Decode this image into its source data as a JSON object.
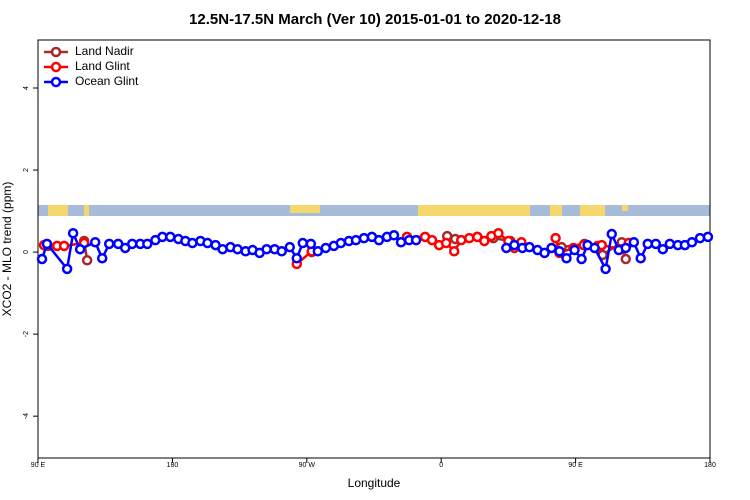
{
  "chart_data": {
    "type": "line",
    "title": "12.5N-17.5N March (Ver 10)   2015-01-01 to 2020-12-18",
    "x_label": "Longitude",
    "y_label": "XCO2 - MLO trend (ppm)",
    "xlim": [
      90,
      540
    ],
    "ylim": [
      -5.02,
      5.17
    ],
    "xticks": [
      {
        "value": 90,
        "label": "90 E"
      },
      180,
      {
        "value": 270,
        "label": "90 W"
      },
      {
        "value": 360,
        "label": "0"
      },
      {
        "value": 450,
        "label": "90 E"
      },
      {
        "value": 540,
        "label": "180"
      }
    ],
    "yticks": [
      -4,
      -2,
      0,
      2,
      4
    ],
    "legend": "topleft",
    "series": [
      {
        "name": "Land Nadir",
        "color": "#a52a2a",
        "x": [
          96.7,
          null,
          120.9,
          122.9,
          null,
          273.3,
          null,
          364.0,
          369.4,
          384.2,
          394.9,
          406.3,
          null,
          440.6,
          456.0,
          468.1,
          480.9,
          483.6
        ],
        "values": [
          0.15,
          null,
          0.27,
          -0.2,
          null,
          0.0,
          null,
          0.39,
          0.32,
          0.37,
          0.34,
          0.27,
          null,
          0.12,
          0.2,
          -0.07,
          0.24,
          -0.17
        ]
      },
      {
        "name": "Land Glint",
        "color": "#ff0000",
        "x": [
          94.0,
          102.8,
          107.5,
          120.9,
          null,
          263.3,
          273.3,
          null,
          337.1,
          349.2,
          353.9,
          358.6,
          363.3,
          368.7,
          373.4,
          378.8,
          384.2,
          388.9,
          393.6,
          398.3,
          405.0,
          409.0,
          413.7,
          null,
          436.6,
          439.2,
          448.6,
          455.4,
          464.8,
          467.5,
          480.9,
          485.6
        ],
        "values": [
          0.17,
          0.15,
          0.15,
          0.22,
          null,
          -0.29,
          0.02,
          null,
          0.37,
          0.37,
          0.29,
          0.17,
          0.22,
          0.02,
          0.29,
          0.34,
          0.37,
          0.27,
          0.39,
          0.46,
          0.27,
          0.1,
          0.24,
          null,
          0.34,
          -0.02,
          0.1,
          0.17,
          0.15,
          0.17,
          0.07,
          0.22
        ]
      },
      {
        "name": "Ocean Glint",
        "color": "#0000ff",
        "x": [
          92.7,
          96.0,
          109.5,
          113.5,
          118.2,
          128.3,
          133.0,
          137.7,
          143.7,
          148.4,
          153.1,
          158.5,
          163.2,
          168.6,
          173.3,
          178.6,
          184.0,
          188.7,
          193.4,
          198.8,
          203.5,
          208.9,
          213.6,
          218.9,
          223.6,
          229.0,
          233.7,
          238.4,
          243.1,
          248.5,
          253.2,
          258.6,
          263.3,
          267.3,
          272.7,
          277.4,
          282.7,
          288.1,
          292.8,
          298.2,
          302.9,
          308.3,
          313.6,
          318.3,
          323.7,
          328.4,
          333.1,
          338.5,
          343.2,
          null,
          403.6,
          409.0,
          414.4,
          419.1,
          424.5,
          429.2,
          433.9,
          439.2,
          443.9,
          449.3,
          454.0,
          458.0,
          462.7,
          470.1,
          474.2,
          478.9,
          483.6,
          489.0,
          493.6,
          498.3,
          503.7,
          508.4,
          513.1,
          518.5,
          523.2,
          527.9,
          533.3,
          538.6
        ],
        "values": [
          -0.17,
          0.2,
          -0.41,
          0.46,
          0.07,
          0.24,
          -0.15,
          0.2,
          0.2,
          0.1,
          0.2,
          0.2,
          0.2,
          0.29,
          0.37,
          0.37,
          0.32,
          0.27,
          0.22,
          0.27,
          0.22,
          0.17,
          0.07,
          0.12,
          0.07,
          0.02,
          0.05,
          -0.02,
          0.07,
          0.07,
          0.02,
          0.12,
          -0.15,
          0.22,
          0.2,
          0.02,
          0.1,
          0.15,
          0.22,
          0.27,
          0.29,
          0.34,
          0.37,
          0.29,
          0.37,
          0.41,
          0.24,
          0.29,
          0.29,
          null,
          0.1,
          0.17,
          0.1,
          0.12,
          0.05,
          -0.02,
          0.1,
          0.02,
          -0.15,
          0.05,
          -0.17,
          0.17,
          0.1,
          -0.41,
          0.44,
          0.05,
          0.1,
          0.24,
          -0.15,
          0.2,
          0.2,
          0.07,
          0.2,
          0.17,
          0.17,
          0.24,
          0.34,
          0.37
        ]
      }
    ]
  }
}
